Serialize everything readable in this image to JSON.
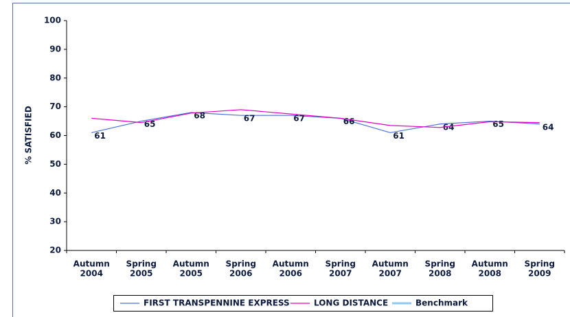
{
  "chart_data": {
    "type": "line",
    "y_label": "% SATISFIED",
    "categories": [
      [
        "Autumn",
        "2004"
      ],
      [
        "Spring",
        "2005"
      ],
      [
        "Autumn",
        "2005"
      ],
      [
        "Spring",
        "2006"
      ],
      [
        "Autumn",
        "2006"
      ],
      [
        "Spring",
        "2007"
      ],
      [
        "Autumn",
        "2007"
      ],
      [
        "Spring",
        "2008"
      ],
      [
        "Autumn",
        "2008"
      ],
      [
        "Spring",
        "2009"
      ]
    ],
    "series": [
      {
        "name": "FIRST TRANSPENNINE EXPRESS",
        "color": "#4a6fd8",
        "values": [
          61,
          65,
          68,
          67,
          67,
          66,
          61,
          64,
          65,
          64
        ],
        "labels": true
      },
      {
        "name": "LONG DISTANCE",
        "color": "#e000c8",
        "values": [
          66,
          64.5,
          67.8,
          69,
          67.5,
          66,
          63.5,
          62.8,
          64.8,
          64.5
        ]
      },
      {
        "name": "Benchmark",
        "color": "#8fc8f0",
        "values": [
          null,
          null,
          null,
          null,
          null,
          null,
          null,
          null,
          null,
          null
        ]
      }
    ],
    "ylim": [
      20,
      100
    ],
    "yticks": [
      20,
      30,
      40,
      50,
      60,
      70,
      80,
      90,
      100
    ]
  }
}
